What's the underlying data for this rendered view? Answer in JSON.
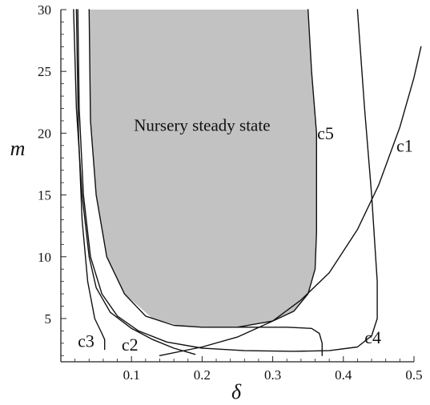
{
  "chart_data": {
    "type": "line",
    "xlabel": "δ",
    "ylabel": "m",
    "xlim": [
      0,
      0.5
    ],
    "ylim": [
      1.5,
      30
    ],
    "x_ticks": [
      "0.1",
      "0.2",
      "0.3",
      "0.4",
      "0.5"
    ],
    "y_ticks": [
      "5",
      "10",
      "15",
      "20",
      "25",
      "30"
    ],
    "shaded_region": {
      "label": "Nursery steady state",
      "color": "#c2c2c2",
      "boundary": [
        [
          0.04,
          30
        ],
        [
          0.042,
          21
        ],
        [
          0.05,
          15
        ],
        [
          0.065,
          10
        ],
        [
          0.09,
          7
        ],
        [
          0.13,
          5
        ],
        [
          0.17,
          4.4
        ],
        [
          0.22,
          4.3
        ],
        [
          0.26,
          4.35
        ],
        [
          0.3,
          4.8
        ],
        [
          0.33,
          5.6
        ],
        [
          0.35,
          7
        ],
        [
          0.36,
          9
        ],
        [
          0.362,
          12
        ],
        [
          0.362,
          20
        ],
        [
          0.355,
          25
        ],
        [
          0.35,
          30
        ]
      ]
    },
    "series": [
      {
        "name": "c1",
        "color": "#111111",
        "points": [
          [
            0.14,
            2.0
          ],
          [
            0.2,
            2.7
          ],
          [
            0.25,
            3.5
          ],
          [
            0.3,
            4.8
          ],
          [
            0.34,
            6.5
          ],
          [
            0.38,
            8.7
          ],
          [
            0.42,
            12.2
          ],
          [
            0.45,
            15.8
          ],
          [
            0.48,
            20.5
          ],
          [
            0.5,
            24.5
          ],
          [
            0.51,
            27
          ]
        ]
      },
      {
        "name": "c2",
        "color": "#111111",
        "points": [
          [
            0.018,
            30
          ],
          [
            0.022,
            22
          ],
          [
            0.03,
            15
          ],
          [
            0.04,
            10
          ],
          [
            0.05,
            7.5
          ],
          [
            0.07,
            5.5
          ],
          [
            0.1,
            4.2
          ],
          [
            0.13,
            3.3
          ],
          [
            0.16,
            2.6
          ],
          [
            0.19,
            2.1
          ]
        ]
      },
      {
        "name": "c3",
        "color": "#111111",
        "points": [
          [
            0.062,
            2.5
          ],
          [
            0.062,
            3.3
          ],
          [
            0.058,
            3.8
          ],
          [
            0.048,
            5
          ],
          [
            0.038,
            8
          ],
          [
            0.03,
            13
          ],
          [
            0.025,
            20
          ],
          [
            0.022,
            30
          ]
        ]
      },
      {
        "name": "c4",
        "color": "#111111",
        "points": [
          [
            0.024,
            30
          ],
          [
            0.026,
            22
          ],
          [
            0.032,
            15
          ],
          [
            0.042,
            10
          ],
          [
            0.058,
            7
          ],
          [
            0.08,
            5.2
          ],
          [
            0.11,
            4.0
          ],
          [
            0.15,
            3.1
          ],
          [
            0.2,
            2.6
          ],
          [
            0.26,
            2.4
          ],
          [
            0.33,
            2.35
          ],
          [
            0.38,
            2.4
          ],
          [
            0.42,
            2.7
          ],
          [
            0.44,
            3.6
          ],
          [
            0.448,
            5
          ],
          [
            0.448,
            8
          ],
          [
            0.44,
            15
          ],
          [
            0.43,
            22
          ],
          [
            0.42,
            30
          ]
        ]
      },
      {
        "name": "c5",
        "color": "#111111",
        "points": [
          [
            0.37,
            2.0
          ],
          [
            0.37,
            3.0
          ],
          [
            0.366,
            3.8
          ],
          [
            0.355,
            4.2
          ],
          [
            0.32,
            4.3
          ],
          [
            0.26,
            4.3
          ],
          [
            0.2,
            4.3
          ],
          [
            0.16,
            4.45
          ],
          [
            0.12,
            5.2
          ],
          [
            0.09,
            7
          ],
          [
            0.065,
            10
          ],
          [
            0.05,
            15
          ],
          [
            0.042,
            21
          ],
          [
            0.04,
            30
          ]
        ]
      },
      {
        "name": "",
        "color": "#111111",
        "points": [
          [
            0.35,
            30
          ],
          [
            0.355,
            25
          ],
          [
            0.362,
            20
          ],
          [
            0.362,
            12
          ],
          [
            0.36,
            9
          ],
          [
            0.35,
            7
          ],
          [
            0.33,
            5.6
          ],
          [
            0.3,
            4.8
          ],
          [
            0.25,
            4.3
          ]
        ]
      }
    ],
    "annotations": [
      {
        "text": "c5",
        "x": 0.363,
        "y": 19.5
      },
      {
        "text": "c1",
        "x": 0.475,
        "y": 18.5
      },
      {
        "text": "c4",
        "x": 0.43,
        "y": 3.0
      },
      {
        "text": "c3",
        "x": 0.024,
        "y": 2.7
      },
      {
        "text": "c2",
        "x": 0.086,
        "y": 2.4
      }
    ],
    "grid": false,
    "legend": "none"
  }
}
